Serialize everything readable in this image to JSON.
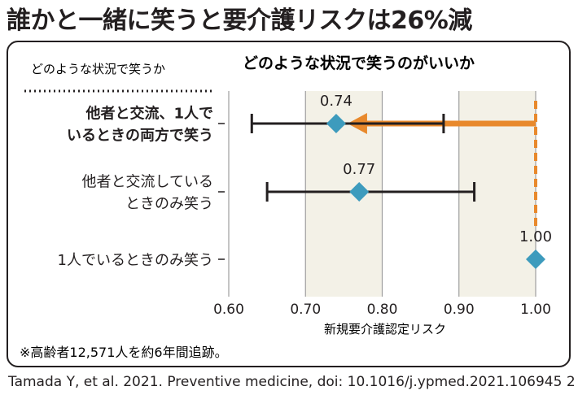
{
  "title": "誰かと一緒に笑うと要介護リスクは26%減",
  "source": "Tamada Y, et al. 2021. Preventive medicine, doi: 10.1016/j.ypmed.2021.106945 2",
  "chart_data": {
    "type": "scatter",
    "title": "どのような状況で笑うのがいいか",
    "row_header": "どのような状況で笑うか",
    "xlabel": "新規要介護認定リスク",
    "xlim": [
      0.6,
      1.0
    ],
    "xticks": [
      "0.60",
      "0.70",
      "0.80",
      "0.90",
      "1.00"
    ],
    "reference_value": 1.0,
    "footnote": "※高齢者12,571人を約6年間追跡。",
    "rows": [
      {
        "label_lines": [
          "他者と交流、1人で",
          "いるときの両方で笑う"
        ],
        "bold": true,
        "value": 0.74,
        "value_label": "0.74",
        "ci": [
          0.63,
          0.88
        ]
      },
      {
        "label_lines": [
          "他者と交流している",
          "ときのみ笑う"
        ],
        "bold": false,
        "value": 0.77,
        "value_label": "0.77",
        "ci": [
          0.65,
          0.92
        ]
      },
      {
        "label_lines": [
          "1人でいるときのみ笑う"
        ],
        "bold": false,
        "value": 1.0,
        "value_label": "1.00",
        "ci": null
      }
    ],
    "colors": {
      "marker": "#3d9bbd",
      "arrow": "#e8892c",
      "band": "#f3f1e7",
      "grid": "#9e9e9e",
      "text": "#231f20"
    }
  }
}
